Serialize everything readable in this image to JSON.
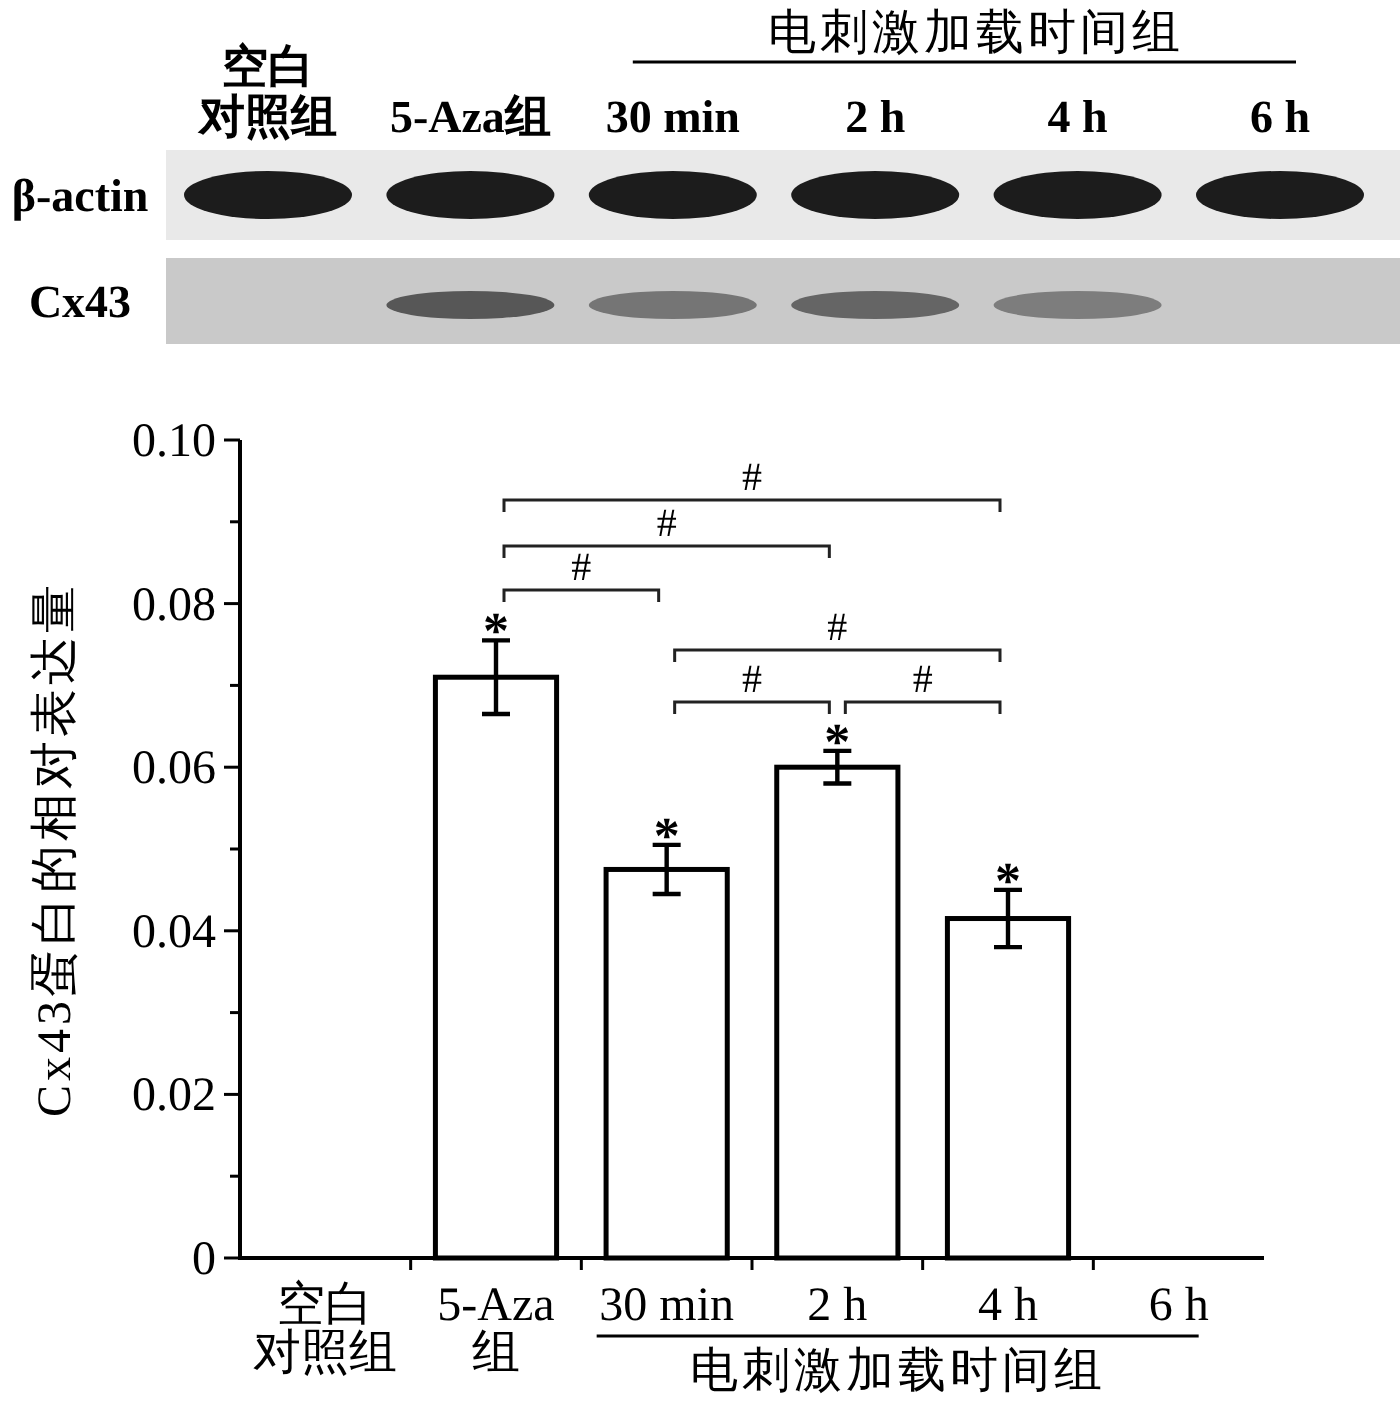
{
  "chart_data": [
    {
      "type": "other",
      "categories": [
        "空白对照组",
        "5-Aza组",
        "30 min",
        "2 h",
        "4 h",
        "6 h"
      ],
      "y_categories": [
        "β-actin",
        "Cx43"
      ],
      "annotations": [
        "电刺激加载时间组"
      ]
    },
    {
      "type": "bar",
      "categories": [
        "空白对照组",
        "5-Aza\n组",
        "30 min",
        "2 h",
        "4 h",
        "6 h"
      ],
      "values": [
        null,
        0.071,
        0.0475,
        0.06,
        0.0415,
        null
      ],
      "errors": [
        null,
        0.0045,
        0.003,
        0.002,
        0.0035,
        null
      ],
      "color": "#ffffff",
      "xlabel": "电刺激加载时间组",
      "ylabel": "Cx43蛋白的相对表达量",
      "ylim": [
        0,
        0.1
      ],
      "yticks": [
        0,
        {
          "value": 0.01,
          "label": null
        },
        0.02,
        {
          "value": 0.03,
          "label": null
        },
        0.04,
        {
          "value": 0.05,
          "label": null
        },
        0.06,
        {
          "value": 0.07,
          "label": null
        },
        0.08,
        {
          "value": 0.09,
          "label": null
        },
        {
          "value": 0.1,
          "label": "0.10"
        }
      ],
      "annotations": [
        {
          "text": "*",
          "x": "5-Aza\n组",
          "y": 0.0755
        },
        {
          "text": "*",
          "x": "30 min",
          "y": 0.0505
        },
        {
          "text": "*",
          "x": "2 h",
          "y": 0.062
        },
        {
          "text": "*",
          "x": "4 h",
          "y": 0.045
        },
        "#",
        "#",
        "#",
        "#",
        "#",
        "#"
      ]
    }
  ]
}
